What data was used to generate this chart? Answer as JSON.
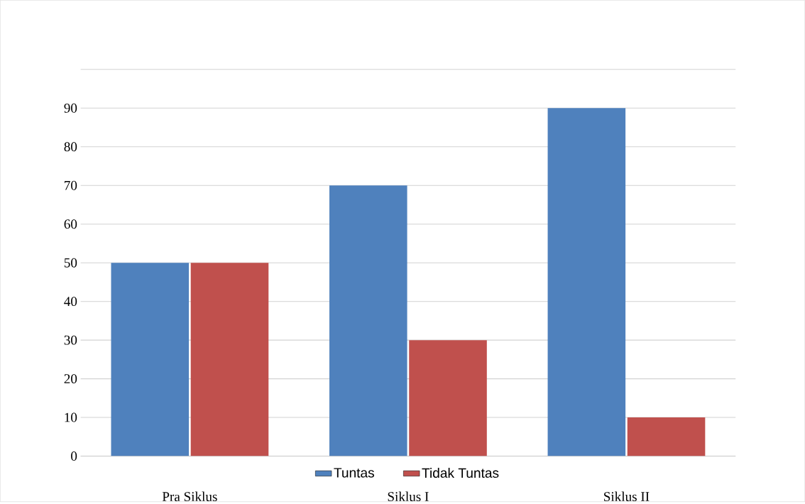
{
  "chart_data": {
    "type": "bar",
    "categories": [
      "Pra Siklus",
      "Siklus I",
      "Siklus II"
    ],
    "series": [
      {
        "name": "Tuntas",
        "color": "#4f81bd",
        "values": [
          50,
          70,
          90
        ]
      },
      {
        "name": "Tidak Tuntas",
        "color": "#c0504d",
        "values": [
          50,
          30,
          10
        ]
      }
    ],
    "ylim": [
      0,
      100
    ],
    "yticks": [
      0,
      10,
      20,
      30,
      40,
      50,
      60,
      70,
      80,
      90,
      {
        "value": 100,
        "label": null
      }
    ],
    "grid": "y",
    "legend": "bottom"
  }
}
